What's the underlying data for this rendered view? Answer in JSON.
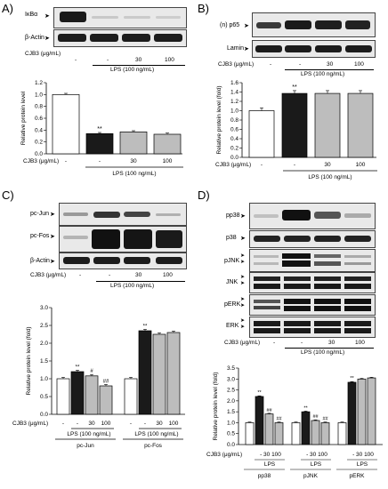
{
  "panels": {
    "A": {
      "label": "A)",
      "blots": [
        "IκBα",
        "β-Actin"
      ],
      "treat_label": "CJB3 (μg/mL)",
      "lanes": [
        "-",
        "-",
        "30",
        "100"
      ],
      "lps_label": "LPS (100 ng/mL)",
      "y_label": "Relative protein level",
      "sig": [
        "",
        "**",
        "",
        ""
      ]
    },
    "B": {
      "label": "B)",
      "blots": [
        "(n) p65",
        "Lamin"
      ],
      "treat_label": "CJB3 (μg/mL)",
      "lanes": [
        "-",
        "-",
        "30",
        "100"
      ],
      "lps_label": "LPS (100 ng/mL)",
      "y_label": "Relative protein level (fold)",
      "sig": [
        "",
        "**",
        "",
        ""
      ]
    },
    "C": {
      "label": "C)",
      "blots": [
        "pc-Jun",
        "pc-Fos",
        "β-Actin"
      ],
      "treat_label": "CJB3 (μg/mL)",
      "lanes": [
        "-",
        "-",
        "30",
        "100"
      ],
      "lps_label": "LPS (100 ng/mL)",
      "y_label": "Relative protein level (fold)",
      "treat_label2": "CJB3 (μg/mL)",
      "groups": [
        "pc-Jun",
        "pc-Fos"
      ],
      "sig_jun": [
        "",
        "**",
        "#",
        "##"
      ],
      "sig_fos": [
        "",
        "**",
        "",
        ""
      ]
    },
    "D": {
      "label": "D)",
      "blots": [
        "pp38",
        "p38",
        "pJNK",
        "JNK",
        "pERK",
        "ERK"
      ],
      "treat_label": "CJB3 (μg/mL)",
      "lanes": [
        "-",
        "-",
        "30",
        "100"
      ],
      "lps_label": "LPS (100 ng/mL)",
      "y_label": "Relative protein level (fold)",
      "treat_label2": "CJB3 (μg/mL)",
      "sub_lanes": "- 30 100",
      "groups": [
        "pp38",
        "pJNK",
        "pERK"
      ],
      "group_lps": "LPS",
      "sig_p38": [
        "",
        "**",
        "##",
        "##"
      ],
      "sig_jnk": [
        "",
        "**",
        "##",
        "##"
      ],
      "sig_erk": [
        "",
        "**",
        "",
        ""
      ]
    }
  },
  "chart_data": [
    {
      "type": "bar",
      "panel": "A",
      "categories": [
        "-",
        "LPS",
        "LPS+CJB3 30",
        "LPS+CJB3 100"
      ],
      "values": [
        1.0,
        0.34,
        0.37,
        0.33
      ],
      "ylabel": "Relative protein level",
      "ylim": [
        0,
        1.2
      ],
      "yticks": [
        "0.0",
        "0.2",
        "0.4",
        "0.6",
        "0.8",
        "1.0",
        "1.2"
      ]
    },
    {
      "type": "bar",
      "panel": "B",
      "categories": [
        "-",
        "LPS",
        "LPS+CJB3 30",
        "LPS+CJB3 100"
      ],
      "values": [
        1.0,
        1.37,
        1.37,
        1.37
      ],
      "ylabel": "Relative protein level (fold)",
      "ylim": [
        0,
        1.6
      ],
      "yticks": [
        "0.0",
        "0.2",
        "0.4",
        "0.6",
        "0.8",
        "1.0",
        "1.2",
        "1.4",
        "1.6"
      ]
    },
    {
      "type": "bar",
      "panel": "C",
      "categories": [
        "-",
        "LPS",
        "LPS+CJB3 30",
        "LPS+CJB3 100"
      ],
      "series": [
        {
          "name": "pc-Jun",
          "values": [
            1.0,
            1.2,
            1.08,
            0.8
          ]
        },
        {
          "name": "pc-Fos",
          "values": [
            1.0,
            2.35,
            2.25,
            2.3
          ]
        }
      ],
      "ylabel": "Relative protein level (fold)",
      "ylim": [
        0,
        3.0
      ],
      "yticks": [
        "0.0",
        "0.5",
        "1.0",
        "1.5",
        "2.0",
        "2.5",
        "3.0"
      ]
    },
    {
      "type": "bar",
      "panel": "D",
      "categories": [
        "-",
        "LPS",
        "LPS+CJB3 30",
        "LPS+CJB3 100"
      ],
      "series": [
        {
          "name": "pp38",
          "values": [
            1.0,
            2.2,
            1.4,
            1.0
          ]
        },
        {
          "name": "pJNK",
          "values": [
            1.0,
            1.5,
            1.1,
            1.0
          ]
        },
        {
          "name": "pERK",
          "values": [
            1.0,
            2.85,
            3.0,
            3.05
          ]
        }
      ],
      "ylabel": "Relative protein level (fold)",
      "ylim": [
        0,
        3.5
      ],
      "yticks": [
        "0.0",
        "0.5",
        "1.0",
        "1.5",
        "2.0",
        "2.5",
        "3.0",
        "3.5"
      ]
    }
  ]
}
